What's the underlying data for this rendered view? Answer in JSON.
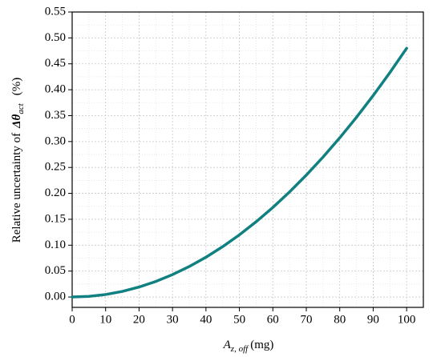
{
  "chart_data": {
    "type": "line",
    "x_label": {
      "main": "A",
      "sub": "z, off",
      "unit": "(mg)"
    },
    "y_label": {
      "text": "Relative uncertainty of",
      "symbol": "Δθ",
      "sub": "act",
      "unit": "(%)"
    },
    "x": [
      0,
      5,
      10,
      15,
      20,
      25,
      30,
      35,
      40,
      45,
      50,
      55,
      60,
      65,
      70,
      75,
      80,
      85,
      90,
      95,
      100
    ],
    "series": [
      {
        "color": "#108080",
        "values": [
          0,
          0.0012,
          0.0048,
          0.0108,
          0.0192,
          0.03,
          0.0432,
          0.0588,
          0.0768,
          0.0972,
          0.12,
          0.1452,
          0.1728,
          0.2028,
          0.2352,
          0.27,
          0.3072,
          0.3468,
          0.3888,
          0.4332,
          0.48
        ]
      }
    ],
    "xlim": [
      0,
      105
    ],
    "ylim": [
      -0.02,
      0.55
    ],
    "xticks": [
      0,
      10,
      20,
      30,
      40,
      50,
      60,
      70,
      80,
      90,
      100
    ],
    "yticks": [
      {
        "value": 0,
        "label": "0.00"
      },
      {
        "value": 0.05,
        "label": "0.05"
      },
      {
        "value": 0.1,
        "label": "0.10"
      },
      {
        "value": 0.15,
        "label": "0.15"
      },
      {
        "value": 0.2,
        "label": "0.20"
      },
      {
        "value": 0.25,
        "label": "0.25"
      },
      {
        "value": 0.3,
        "label": "0.30"
      },
      {
        "value": 0.35,
        "label": "0.35"
      },
      {
        "value": 0.4,
        "label": "0.40"
      },
      {
        "value": 0.45,
        "label": "0.45"
      },
      {
        "value": 0.5,
        "label": "0.50"
      },
      {
        "value": 0.55,
        "label": "0.55"
      }
    ],
    "grid": true
  }
}
